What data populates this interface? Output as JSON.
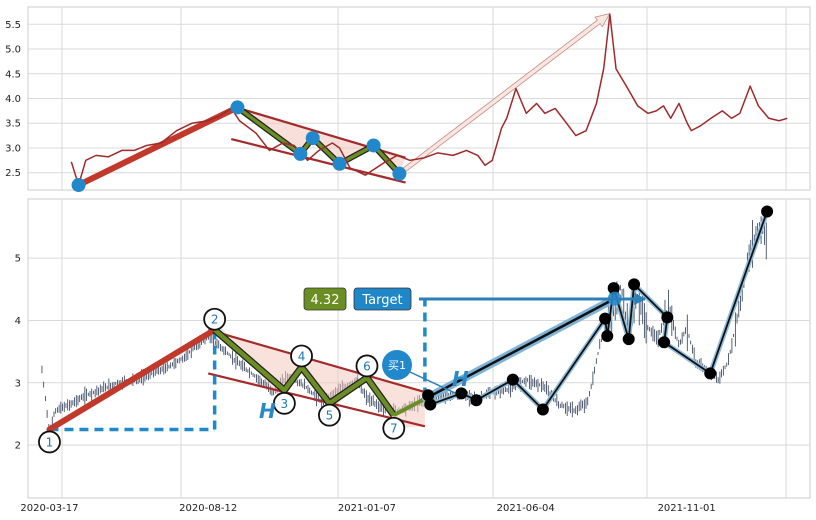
{
  "colors": {
    "background": "#ffffff",
    "grid": "#d9d9d9",
    "frame": "#cccccc",
    "price_line": "#9e2a2b",
    "candle": "#2b3a55",
    "red_line": "#c0392b",
    "trend_channel": "#a52a2a",
    "zigzag_green": "#6b8e23",
    "fill_pink": "#f4c9bf",
    "marker_blue": "#2288cc",
    "dashed_blue": "#1f8ac9",
    "label_blue": "#1f77b4",
    "target_box": "#1f86c8",
    "value_box": "#6b8e23",
    "black_points": "#000000",
    "arrow_fill": "#f8e6e1"
  },
  "chart_data": [
    {
      "type": "line",
      "title": "",
      "xlim": [
        "2020-01-28",
        "2022-02-24"
      ],
      "ylim": [
        2.15,
        5.85
      ],
      "yticks": [
        2.5,
        3.0,
        3.5,
        4.0,
        4.5,
        5.0,
        5.5
      ],
      "ytick_labels": [
        "2.5",
        "3.0",
        "3.5",
        "4.0",
        "4.5",
        "5.0",
        "5.5"
      ],
      "grid": true,
      "series": [
        {
          "style": "line",
          "x": [
            "2020-03-10",
            "2020-03-17",
            "2020-03-24",
            "2020-04-03",
            "2020-04-15",
            "2020-04-28",
            "2020-05-10",
            "2020-05-22",
            "2020-06-05",
            "2020-06-20",
            "2020-07-05",
            "2020-07-20",
            "2020-08-01",
            "2020-08-12",
            "2020-08-20",
            "2020-09-05",
            "2020-09-18",
            "2020-10-01",
            "2020-10-12",
            "2020-10-25",
            "2020-11-05",
            "2020-11-18",
            "2020-11-25",
            "2020-12-05",
            "2020-12-20",
            "2021-01-07",
            "2021-01-20",
            "2021-02-01",
            "2021-02-15",
            "2021-02-28",
            "2021-03-15",
            "2021-03-28",
            "2021-04-08",
            "2021-04-15",
            "2021-04-22",
            "2021-05-01",
            "2021-05-06",
            "2021-05-15",
            "2021-05-25",
            "2021-06-04",
            "2021-06-12",
            "2021-06-22",
            "2021-07-03",
            "2021-07-12",
            "2021-07-22",
            "2021-08-01",
            "2021-08-08",
            "2021-08-14",
            "2021-08-20",
            "2021-08-30",
            "2021-09-10",
            "2021-09-20",
            "2021-09-28",
            "2021-10-05",
            "2021-10-12",
            "2021-10-20",
            "2021-10-28",
            "2021-11-01",
            "2021-11-10",
            "2021-11-20",
            "2021-12-01",
            "2021-12-10",
            "2021-12-18",
            "2021-12-28",
            "2022-01-05",
            "2022-01-15",
            "2022-01-25",
            "2022-02-02"
          ],
          "values": [
            2.72,
            2.25,
            2.75,
            2.85,
            2.82,
            2.95,
            2.95,
            3.05,
            3.1,
            3.35,
            3.5,
            3.55,
            3.65,
            3.8,
            3.55,
            3.3,
            2.95,
            3.1,
            3.05,
            2.75,
            2.95,
            3.1,
            3.0,
            2.6,
            2.45,
            2.7,
            2.85,
            2.75,
            2.8,
            2.9,
            2.85,
            2.95,
            2.85,
            2.65,
            2.75,
            3.4,
            3.6,
            4.2,
            3.7,
            3.9,
            3.7,
            3.8,
            3.5,
            3.25,
            3.35,
            3.9,
            4.6,
            5.7,
            4.6,
            4.25,
            3.85,
            3.7,
            3.75,
            3.85,
            3.6,
            3.9,
            3.5,
            3.35,
            3.45,
            3.6,
            3.75,
            3.6,
            3.7,
            4.25,
            3.85,
            3.6,
            3.55,
            3.6
          ]
        }
      ],
      "pattern_points": [
        {
          "x": "2020-03-17",
          "y": 2.25
        },
        {
          "x": "2020-08-18",
          "y": 3.82
        },
        {
          "x": "2020-10-18",
          "y": 2.88
        },
        {
          "x": "2020-10-30",
          "y": 3.2
        },
        {
          "x": "2020-11-25",
          "y": 2.68
        },
        {
          "x": "2020-12-28",
          "y": 3.05
        },
        {
          "x": "2021-01-22",
          "y": 2.48
        }
      ],
      "trend_lines": [
        {
          "from": {
            "x": "2020-08-12",
            "y": 3.85
          },
          "to": {
            "x": "2021-01-28",
            "y": 2.8
          }
        },
        {
          "from": {
            "x": "2020-08-12",
            "y": 3.18
          },
          "to": {
            "x": "2021-01-28",
            "y": 2.3
          }
        }
      ],
      "projection_arrow": {
        "from": {
          "x": "2021-01-22",
          "y": 2.48
        },
        "to": {
          "x": "2021-08-14",
          "y": 5.72
        }
      }
    },
    {
      "type": "candlestick",
      "title": "",
      "xlim": [
        "2020-02-26",
        "2022-02-24"
      ],
      "ylim": [
        1.15,
        5.95
      ],
      "yticks": [
        2,
        3,
        4,
        5
      ],
      "ytick_labels": [
        "2",
        "3",
        "4",
        "5"
      ],
      "xticks": [
        "2020-03-17",
        "2020-08-12",
        "2021-01-07",
        "2021-06-04",
        "2021-11-01"
      ],
      "xtick_labels": [
        "2020-03-17",
        "2020-08-12",
        "2021-01-07",
        "2021-06-04",
        "2021-11-01"
      ],
      "grid": true,
      "price_path": {
        "x": [
          "2020-03-10",
          "2020-03-17",
          "2020-03-22",
          "2020-04-05",
          "2020-04-20",
          "2020-05-05",
          "2020-05-20",
          "2020-06-05",
          "2020-06-20",
          "2020-07-05",
          "2020-07-20",
          "2020-08-01",
          "2020-08-12",
          "2020-08-25",
          "2020-09-10",
          "2020-09-25",
          "2020-10-12",
          "2020-10-25",
          "2020-11-10",
          "2020-11-25",
          "2020-12-10",
          "2020-12-28",
          "2021-01-07",
          "2021-01-20",
          "2021-02-05",
          "2021-02-20",
          "2021-03-05",
          "2021-03-20",
          "2021-04-05",
          "2021-04-20",
          "2021-05-05",
          "2021-05-20",
          "2021-06-04",
          "2021-06-20",
          "2021-07-05",
          "2021-07-20",
          "2021-08-01",
          "2021-08-12",
          "2021-08-20",
          "2021-09-01",
          "2021-09-08",
          "2021-09-15",
          "2021-09-25",
          "2021-10-05",
          "2021-10-15",
          "2021-10-25",
          "2021-11-01",
          "2021-11-10",
          "2021-11-20",
          "2021-12-01",
          "2021-12-10",
          "2021-12-20",
          "2021-12-30",
          "2022-01-08",
          "2022-01-15"
        ],
        "values": [
          3.2,
          2.2,
          2.55,
          2.65,
          2.8,
          2.9,
          3.0,
          3.05,
          3.15,
          3.25,
          3.4,
          3.6,
          3.75,
          3.55,
          3.3,
          3.1,
          2.85,
          3.1,
          2.95,
          2.7,
          2.85,
          3.05,
          2.75,
          2.6,
          2.55,
          2.65,
          2.75,
          2.8,
          2.8,
          2.75,
          2.85,
          2.9,
          3.05,
          2.95,
          2.65,
          2.55,
          2.7,
          3.6,
          4.0,
          4.55,
          3.75,
          4.45,
          3.9,
          3.7,
          4.2,
          3.6,
          3.9,
          3.3,
          3.2,
          3.05,
          3.35,
          4.2,
          5.1,
          5.5,
          5.35
        ]
      },
      "points": [
        {
          "label": "1",
          "x": "2020-03-17",
          "y": 2.05
        },
        {
          "label": "2",
          "x": "2020-08-18",
          "y": 4.02
        },
        {
          "label": "3",
          "x": "2020-10-22",
          "y": 2.67
        },
        {
          "label": "4",
          "x": "2020-11-07",
          "y": 3.43
        },
        {
          "label": "5",
          "x": "2020-12-03",
          "y": 2.48
        },
        {
          "label": "6",
          "x": "2021-01-07",
          "y": 3.27
        },
        {
          "label": "7",
          "x": "2021-02-01",
          "y": 2.27
        }
      ],
      "black_points": [
        {
          "x": "2021-03-05",
          "y": 2.8
        },
        {
          "x": "2021-03-07",
          "y": 2.65
        },
        {
          "x": "2021-04-05",
          "y": 2.83
        },
        {
          "x": "2021-04-19",
          "y": 2.72
        },
        {
          "x": "2021-05-23",
          "y": 3.05
        },
        {
          "x": "2021-06-20",
          "y": 2.57
        },
        {
          "x": "2021-08-17",
          "y": 4.03
        },
        {
          "x": "2021-08-19",
          "y": 3.75
        },
        {
          "x": "2021-08-25",
          "y": 4.52
        },
        {
          "x": "2021-09-08",
          "y": 3.7
        },
        {
          "x": "2021-09-13",
          "y": 4.58
        },
        {
          "x": "2021-10-14",
          "y": 4.05
        },
        {
          "x": "2021-10-11",
          "y": 3.65
        },
        {
          "x": "2021-11-23",
          "y": 3.15
        },
        {
          "x": "2022-01-15",
          "y": 5.75
        }
      ],
      "breakout": {
        "from": {
          "x": "2021-03-03",
          "y": 2.75
        },
        "to": {
          "x": "2021-08-26",
          "y": 4.35
        }
      },
      "trend_lines": [
        {
          "from": {
            "x": "2020-08-12",
            "y": 3.85
          },
          "to": {
            "x": "2021-03-02",
            "y": 2.85
          }
        },
        {
          "from": {
            "x": "2020-08-12",
            "y": 3.15
          },
          "to": {
            "x": "2021-03-02",
            "y": 2.3
          }
        }
      ],
      "h_measure": [
        {
          "x": "2020-08-18",
          "y_from": 2.25,
          "y_to": 3.85
        },
        {
          "x": "2021-03-02",
          "y_from": 2.78,
          "y_to": 4.33
        }
      ],
      "annotations": {
        "value_label": "4.32",
        "target_label": "Target",
        "buy_label": "买1",
        "h_label": "H"
      }
    }
  ]
}
